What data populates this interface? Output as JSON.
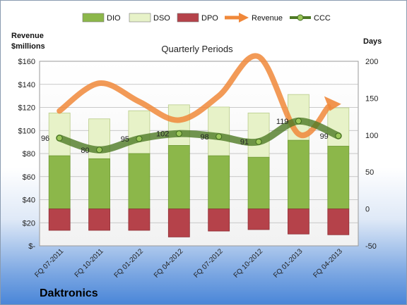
{
  "chart_data": {
    "type": "bar",
    "title": "Quarterly Periods",
    "company": "Daktronics",
    "left_axis_title": [
      "Revenue",
      "$millions"
    ],
    "right_axis_title": "Days",
    "left_ticks": [
      "$-",
      "$20",
      "$40",
      "$60",
      "$80",
      "$100",
      "$120",
      "$140",
      "$160"
    ],
    "left_ylim": [
      0,
      160
    ],
    "right_ticks": [
      "-50",
      "0",
      "50",
      "100",
      "150",
      "200"
    ],
    "right_ylim": [
      -50,
      200
    ],
    "legend_position": "top",
    "categories": [
      "FQ 07-2011",
      "FQ 10-2011",
      "FQ 01-2012",
      "FQ 04-2012",
      "FQ 07-2012",
      "FQ 10-2012",
      "FQ 01-2013",
      "FQ 04-2013"
    ],
    "series": [
      {
        "name": "DIO",
        "type": "stacked-bar",
        "axis": "right",
        "color": "#8cb74a",
        "values": [
          72,
          68,
          75,
          86,
          72,
          70,
          93,
          85
        ]
      },
      {
        "name": "DSO",
        "type": "stacked-bar",
        "axis": "right",
        "color": "#e7f2c8",
        "values": [
          58,
          54,
          58,
          55,
          66,
          60,
          62,
          52
        ]
      },
      {
        "name": "DPO",
        "type": "bar",
        "axis": "right",
        "color": "#b5424a",
        "values": [
          -29,
          -29,
          -29,
          -38,
          -30,
          -28,
          -34,
          -35
        ]
      },
      {
        "name": "Revenue",
        "type": "line",
        "axis": "left",
        "color": "#f0883a",
        "values": [
          117,
          141,
          125,
          109,
          130,
          164,
          97,
          123
        ]
      },
      {
        "name": "CCC",
        "type": "line",
        "axis": "right",
        "color": "#4f7a26",
        "values": [
          96,
          80,
          95,
          102,
          98,
          91,
          119,
          99
        ],
        "labels": [
          "96",
          "80",
          "95",
          "102",
          "98",
          "91",
          "119",
          "99"
        ]
      }
    ]
  }
}
